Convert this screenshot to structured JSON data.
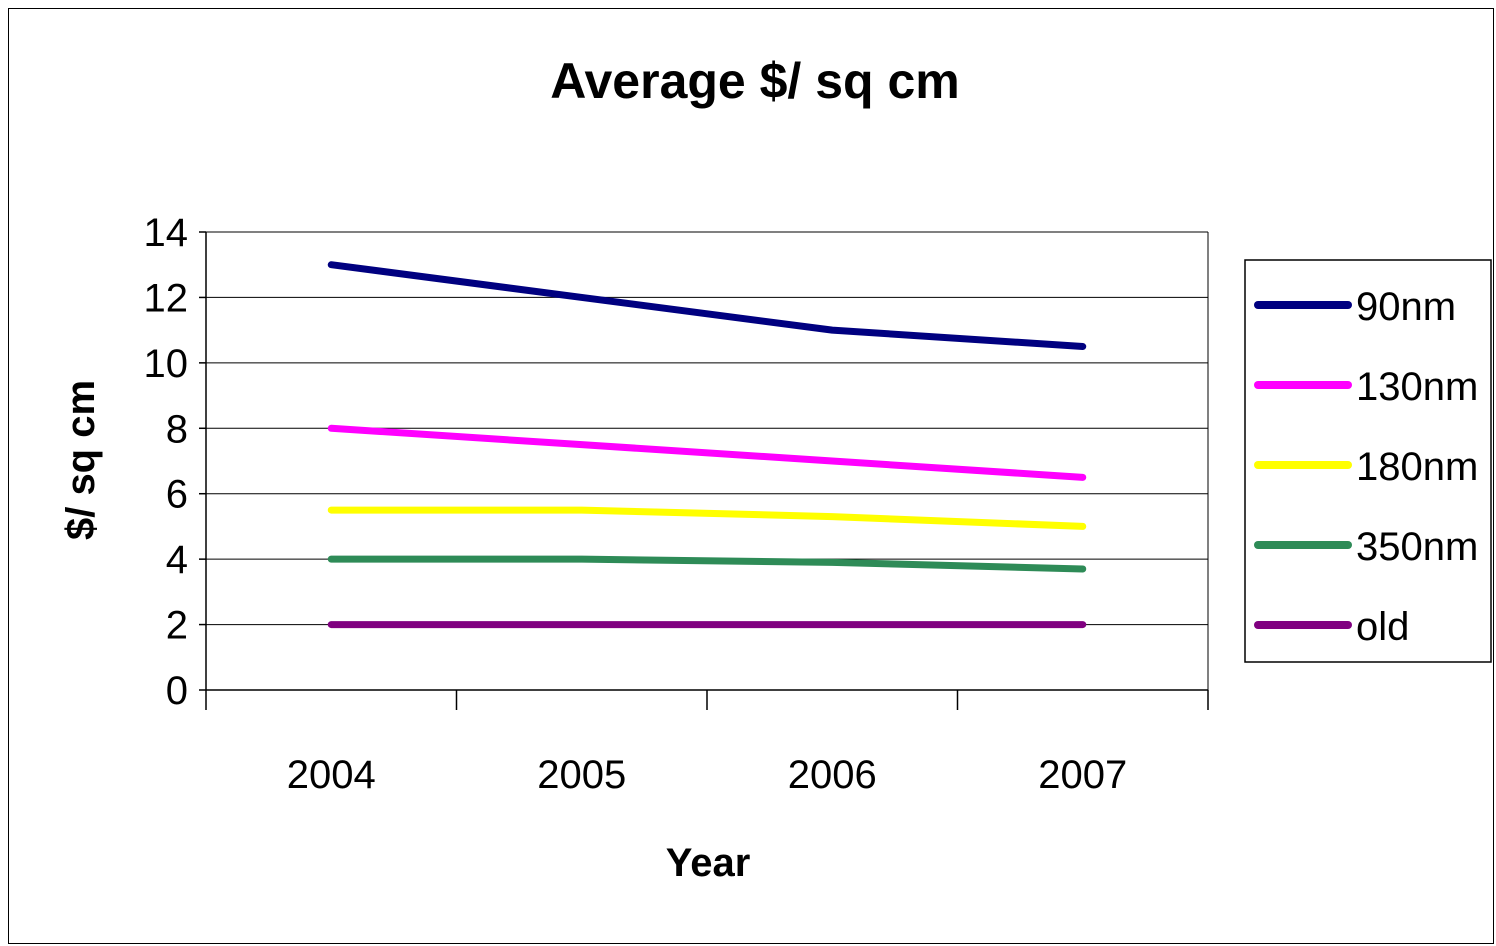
{
  "chart_data": {
    "type": "line",
    "title": "Average $/ sq cm",
    "xlabel": "Year",
    "ylabel": "$/ sq cm",
    "categories": [
      "2004",
      "2005",
      "2006",
      "2007"
    ],
    "ylim": [
      0,
      14
    ],
    "yticks": [
      0,
      2,
      4,
      6,
      8,
      10,
      12,
      14
    ],
    "grid": true,
    "legend_position": "right",
    "series": [
      {
        "name": "90nm",
        "color": "#000080",
        "values": [
          13.0,
          12.0,
          11.0,
          10.5
        ]
      },
      {
        "name": "130nm",
        "color": "#ff00ff",
        "values": [
          8.0,
          7.5,
          7.0,
          6.5
        ]
      },
      {
        "name": "180nm",
        "color": "#ffff00",
        "values": [
          5.5,
          5.5,
          5.3,
          5.0
        ]
      },
      {
        "name": "350nm",
        "color": "#2e8b57",
        "values": [
          4.0,
          4.0,
          3.9,
          3.7
        ]
      },
      {
        "name": "old",
        "color": "#800080",
        "values": [
          2.0,
          2.0,
          2.0,
          2.0
        ]
      }
    ]
  }
}
